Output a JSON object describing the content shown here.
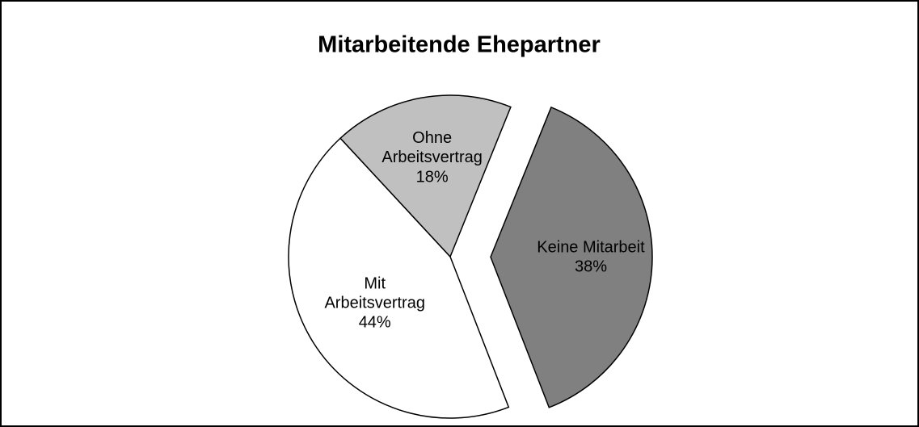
{
  "chart_data": {
    "type": "pie",
    "title": "Mitarbeitende Ehepartner",
    "categories": [
      "Keine Mitarbeit",
      "Mit Arbeitsvertrag",
      "Ohne Arbeitsvertrag"
    ],
    "values": [
      38,
      44,
      18
    ],
    "value_labels": [
      "38%",
      "44%",
      "18%"
    ],
    "colors": [
      "#808080",
      "#ffffff",
      "#c0c0c0"
    ],
    "exploded": [
      true,
      false,
      false
    ]
  }
}
